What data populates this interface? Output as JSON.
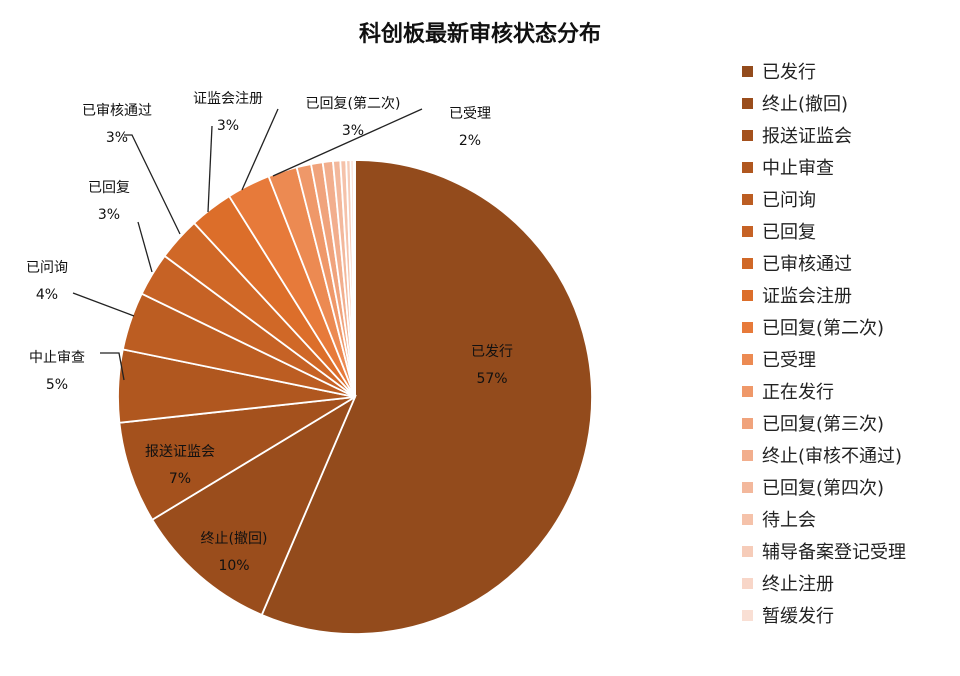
{
  "chart_data": {
    "type": "pie",
    "title": "科创板最新审核状态分布",
    "slices": [
      {
        "label": "已发行",
        "value": 57,
        "display": "57%",
        "color": "#934b1c"
      },
      {
        "label": "终止(撤回)",
        "value": 10,
        "display": "10%",
        "color": "#9a4d1c"
      },
      {
        "label": "报送证监会",
        "value": 7,
        "display": "7%",
        "color": "#a4511d"
      },
      {
        "label": "中止审查",
        "value": 5,
        "display": "5%",
        "color": "#b0571f"
      },
      {
        "label": "已问询",
        "value": 4,
        "display": "4%",
        "color": "#bc5d22"
      },
      {
        "label": "已回复",
        "value": 3,
        "display": "3%",
        "color": "#c66225"
      },
      {
        "label": "已审核通过",
        "value": 3,
        "display": "3%",
        "color": "#d06827"
      },
      {
        "label": "证监会注册",
        "value": 3,
        "display": "3%",
        "color": "#dc6e2a"
      },
      {
        "label": "已回复(第二次)",
        "value": 3,
        "display": "3%",
        "color": "#e77a3a"
      },
      {
        "label": "已受理",
        "value": 2,
        "display": "2%",
        "color": "#ec8a52"
      },
      {
        "label": "正在发行",
        "value": 1,
        "display": "",
        "color": "#ef9869"
      },
      {
        "label": "已回复(第三次)",
        "value": 0.8,
        "display": "",
        "color": "#f0a37c"
      },
      {
        "label": "终止(审核不通过)",
        "value": 0.7,
        "display": "",
        "color": "#f2ae8d"
      },
      {
        "label": "已回复(第四次)",
        "value": 0.5,
        "display": "",
        "color": "#f3b89c"
      },
      {
        "label": "待上会",
        "value": 0.4,
        "display": "",
        "color": "#f5c2aa"
      },
      {
        "label": "辅导备案登记受理",
        "value": 0.3,
        "display": "",
        "color": "#f6ccb9"
      },
      {
        "label": "终止注册",
        "value": 0.2,
        "display": "",
        "color": "#f8d6c8"
      },
      {
        "label": "暂缓发行",
        "value": 0.1,
        "display": "",
        "color": "#f9dfd4"
      }
    ],
    "legend_position": "right"
  }
}
